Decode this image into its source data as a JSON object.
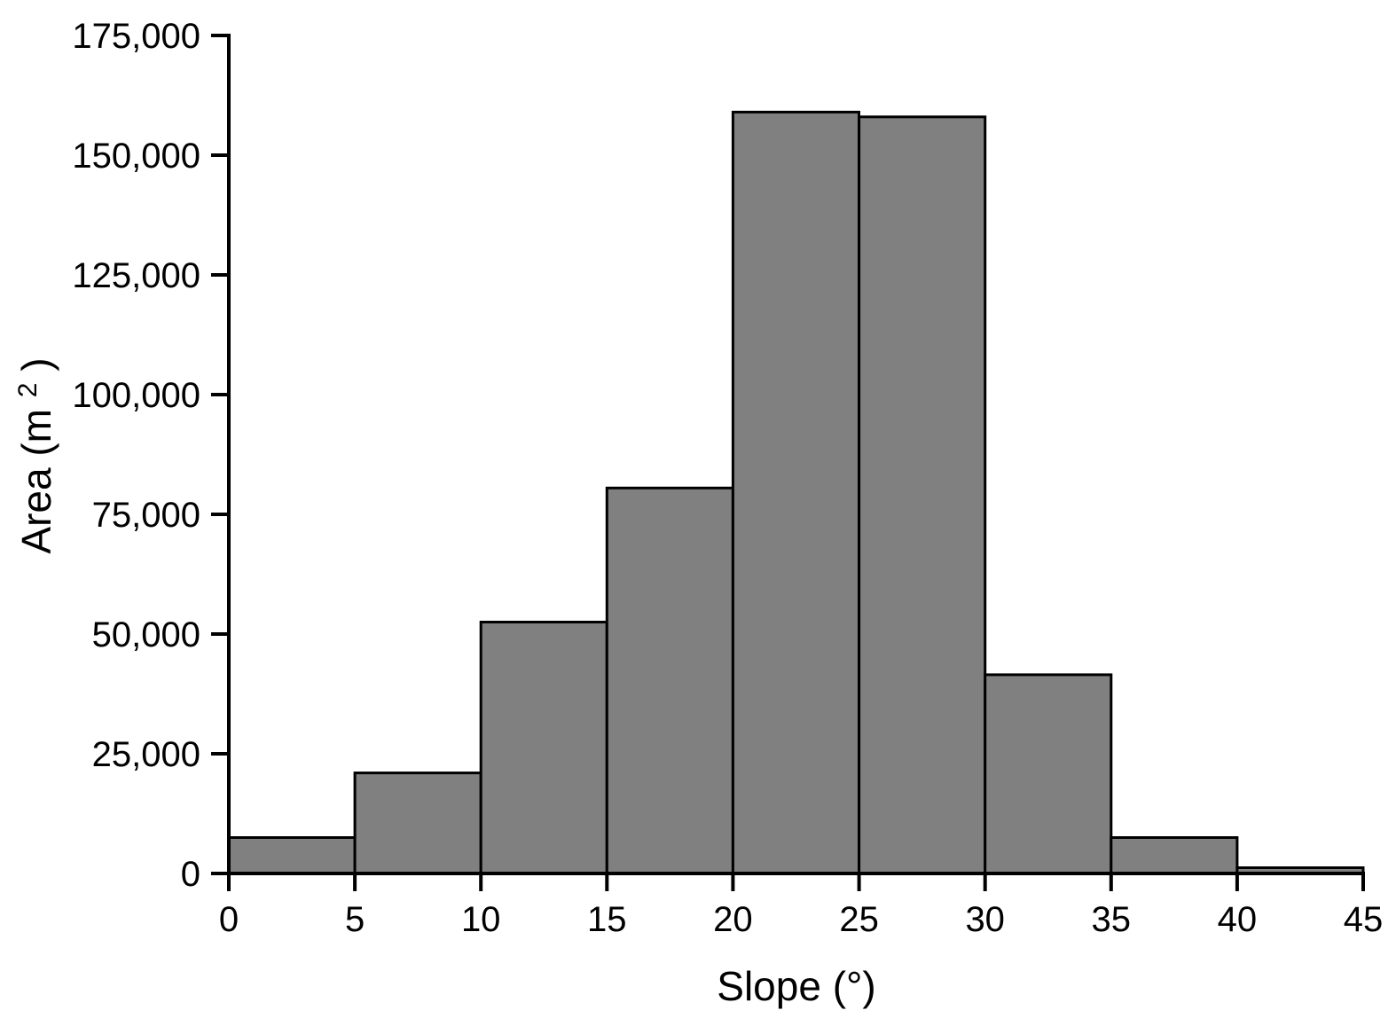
{
  "chart": {
    "background": "#ffffff",
    "text_color": "#000000"
  },
  "chart_data": {
    "type": "bar",
    "subtype": "histogram",
    "title": "",
    "xlabel": "Slope (°)",
    "ylabel": "Area (m²)",
    "ylabel_rich": {
      "pre": "Area (m",
      "sup": "2",
      "post": ")"
    },
    "bin_edges": [
      0,
      5,
      10,
      15,
      20,
      25,
      30,
      35,
      40,
      45
    ],
    "categories": [
      "0-5",
      "5-10",
      "10-15",
      "15-20",
      "20-25",
      "25-30",
      "30-35",
      "35-40",
      "40-45"
    ],
    "values": [
      7500,
      21000,
      52500,
      80500,
      159000,
      158000,
      41500,
      7500,
      1200
    ],
    "xlim": [
      0,
      45
    ],
    "ylim": [
      0,
      175000
    ],
    "x_ticks": [
      0,
      5,
      10,
      15,
      20,
      25,
      30,
      35,
      40,
      45
    ],
    "x_tick_labels": [
      "0",
      "5",
      "10",
      "15",
      "20",
      "25",
      "30",
      "35",
      "40",
      "45"
    ],
    "y_ticks": [
      0,
      25000,
      50000,
      75000,
      100000,
      125000,
      150000,
      175000
    ],
    "y_tick_labels": [
      "0",
      "25,000",
      "50,000",
      "75,000",
      "100,000",
      "125,000",
      "150,000",
      "175,000"
    ],
    "grid": false,
    "legend": null,
    "bar_fill": "#808080",
    "bar_stroke": "#000000",
    "axis_color": "#000000"
  }
}
